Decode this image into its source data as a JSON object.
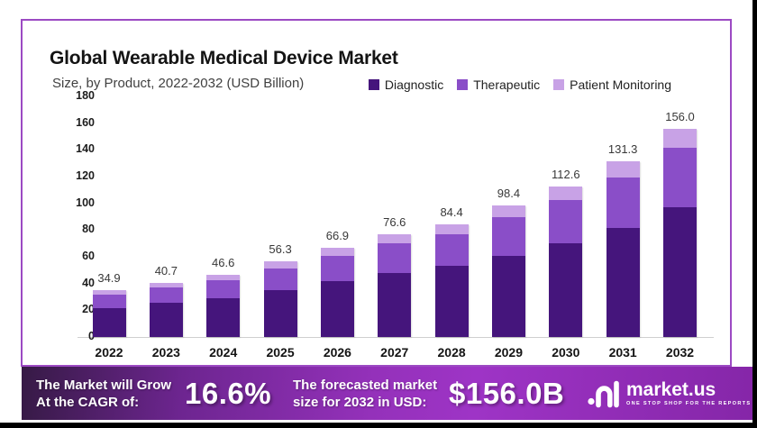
{
  "header": {
    "title": "Global Wearable Medical Device Market",
    "subtitle": "Size, by Product, 2022-2032 (USD Billion)"
  },
  "card": {
    "border_color": "#9c4ac3"
  },
  "chart_data": {
    "type": "bar",
    "stacked": true,
    "title": "Global Wearable Medical Device Market",
    "subtitle": "Size, by Product, 2022-2032 (USD Billion)",
    "categories": [
      "2022",
      "2023",
      "2024",
      "2025",
      "2026",
      "2027",
      "2028",
      "2029",
      "2030",
      "2031",
      "2032"
    ],
    "series": [
      {
        "name": "Diagnostic",
        "color": "#45157c",
        "values": [
          21.6,
          25.3,
          29.0,
          35.3,
          42.0,
          48.0,
          53.0,
          61.0,
          70.3,
          81.4,
          96.8
        ]
      },
      {
        "name": "Therapeutic",
        "color": "#8a4ec8",
        "values": [
          10.2,
          11.8,
          13.4,
          15.8,
          19.0,
          21.8,
          23.9,
          28.4,
          32.2,
          38.0,
          44.9
        ]
      },
      {
        "name": "Patient Monitoring",
        "color": "#c8a2e6",
        "values": [
          3.1,
          3.6,
          4.2,
          5.2,
          5.9,
          6.8,
          7.5,
          9.0,
          10.1,
          11.9,
          14.3
        ]
      }
    ],
    "totals": [
      "34.9",
      "40.7",
      "46.6",
      "56.3",
      "66.9",
      "76.6",
      "84.4",
      "98.4",
      "112.6",
      "131.3",
      "156.0"
    ],
    "ylim": [
      0,
      180
    ],
    "yticks": [
      180,
      160,
      140,
      120,
      100,
      80,
      60,
      40,
      20,
      0
    ],
    "grid": false,
    "legend_position": "top-right",
    "xlabel": "",
    "ylabel": ""
  },
  "banner": {
    "gradient": [
      "#361a45",
      "#6d2590",
      "#9431ba",
      "#9e34c6",
      "#8526a8"
    ],
    "cagr_label_line1": "The Market will Grow",
    "cagr_label_line2": "At the CAGR of:",
    "cagr_value": "16.6%",
    "forecast_label_line1": "The forecasted market",
    "forecast_label_line2": "size for 2032 in USD:",
    "forecast_value": "$156.0B",
    "logo": {
      "name": "market.us",
      "tagline": "ONE STOP SHOP FOR THE REPORTS"
    }
  }
}
